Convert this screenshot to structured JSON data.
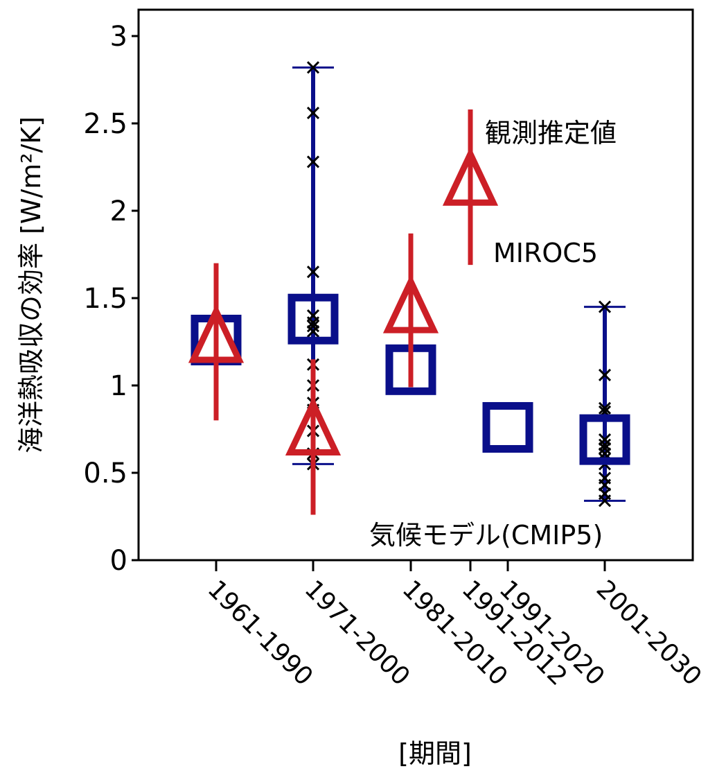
{
  "chart_data": {
    "type": "scatter",
    "xlabel": "[期間]",
    "ylabel": "海洋熱吸収の効率 [W/m²/K]",
    "ylim": [
      0,
      3
    ],
    "yticks": [
      "0",
      "0.5",
      "1",
      "1.5",
      "2",
      "2.5",
      "3"
    ],
    "categories": [
      "1961-1990",
      "1971-2000",
      "1981-2010",
      "1991-2012",
      "1991-2020",
      "2001-2030"
    ],
    "colors": {
      "model": "#0a0f8a",
      "obs": "#cc1f26",
      "spread": "#000000"
    },
    "annotations": {
      "obs": "観測推定値",
      "miroc": "MIROC5",
      "cmip": "気候モデル(CMIP5)"
    },
    "series": [
      {
        "marker": "square",
        "points": [
          {
            "category": "1961-1990",
            "y": 1.26
          },
          {
            "category": "1971-2000",
            "y": 1.38
          },
          {
            "category": "1981-2010",
            "y": 1.09
          },
          {
            "category": "1991-2020",
            "y": 0.76
          },
          {
            "category": "2001-2030",
            "y": 0.69
          }
        ]
      },
      {
        "marker": "triangle",
        "points": [
          {
            "category": "1961-1990",
            "y": 1.25,
            "low": 0.8,
            "high": 1.7
          },
          {
            "category": "1971-2000",
            "y": 0.72,
            "low": 0.26,
            "high": 1.15
          },
          {
            "category": "1981-2010",
            "y": 1.42,
            "low": 0.99,
            "high": 1.87
          },
          {
            "category": "1991-2012",
            "y": 2.15,
            "low": 1.69,
            "high": 2.58
          }
        ]
      },
      {
        "marker": "range",
        "points": [
          {
            "category": "1971-2000",
            "low": 0.55,
            "high": 2.82
          },
          {
            "category": "2001-2030",
            "low": 0.34,
            "high": 1.45
          }
        ]
      },
      {
        "marker": "cross",
        "points": [
          {
            "category": "1971-2000",
            "values": [
              0.55,
              0.61,
              0.74,
              0.86,
              0.9,
              1.0,
              1.12,
              1.31,
              1.34,
              1.36,
              1.4,
              1.65,
              2.28,
              2.56,
              2.82
            ]
          },
          {
            "category": "2001-2030",
            "values": [
              0.34,
              0.38,
              0.43,
              0.47,
              0.55,
              0.58,
              0.61,
              0.64,
              0.66,
              0.69,
              0.85,
              0.87,
              1.06,
              1.45
            ]
          }
        ]
      }
    ]
  }
}
